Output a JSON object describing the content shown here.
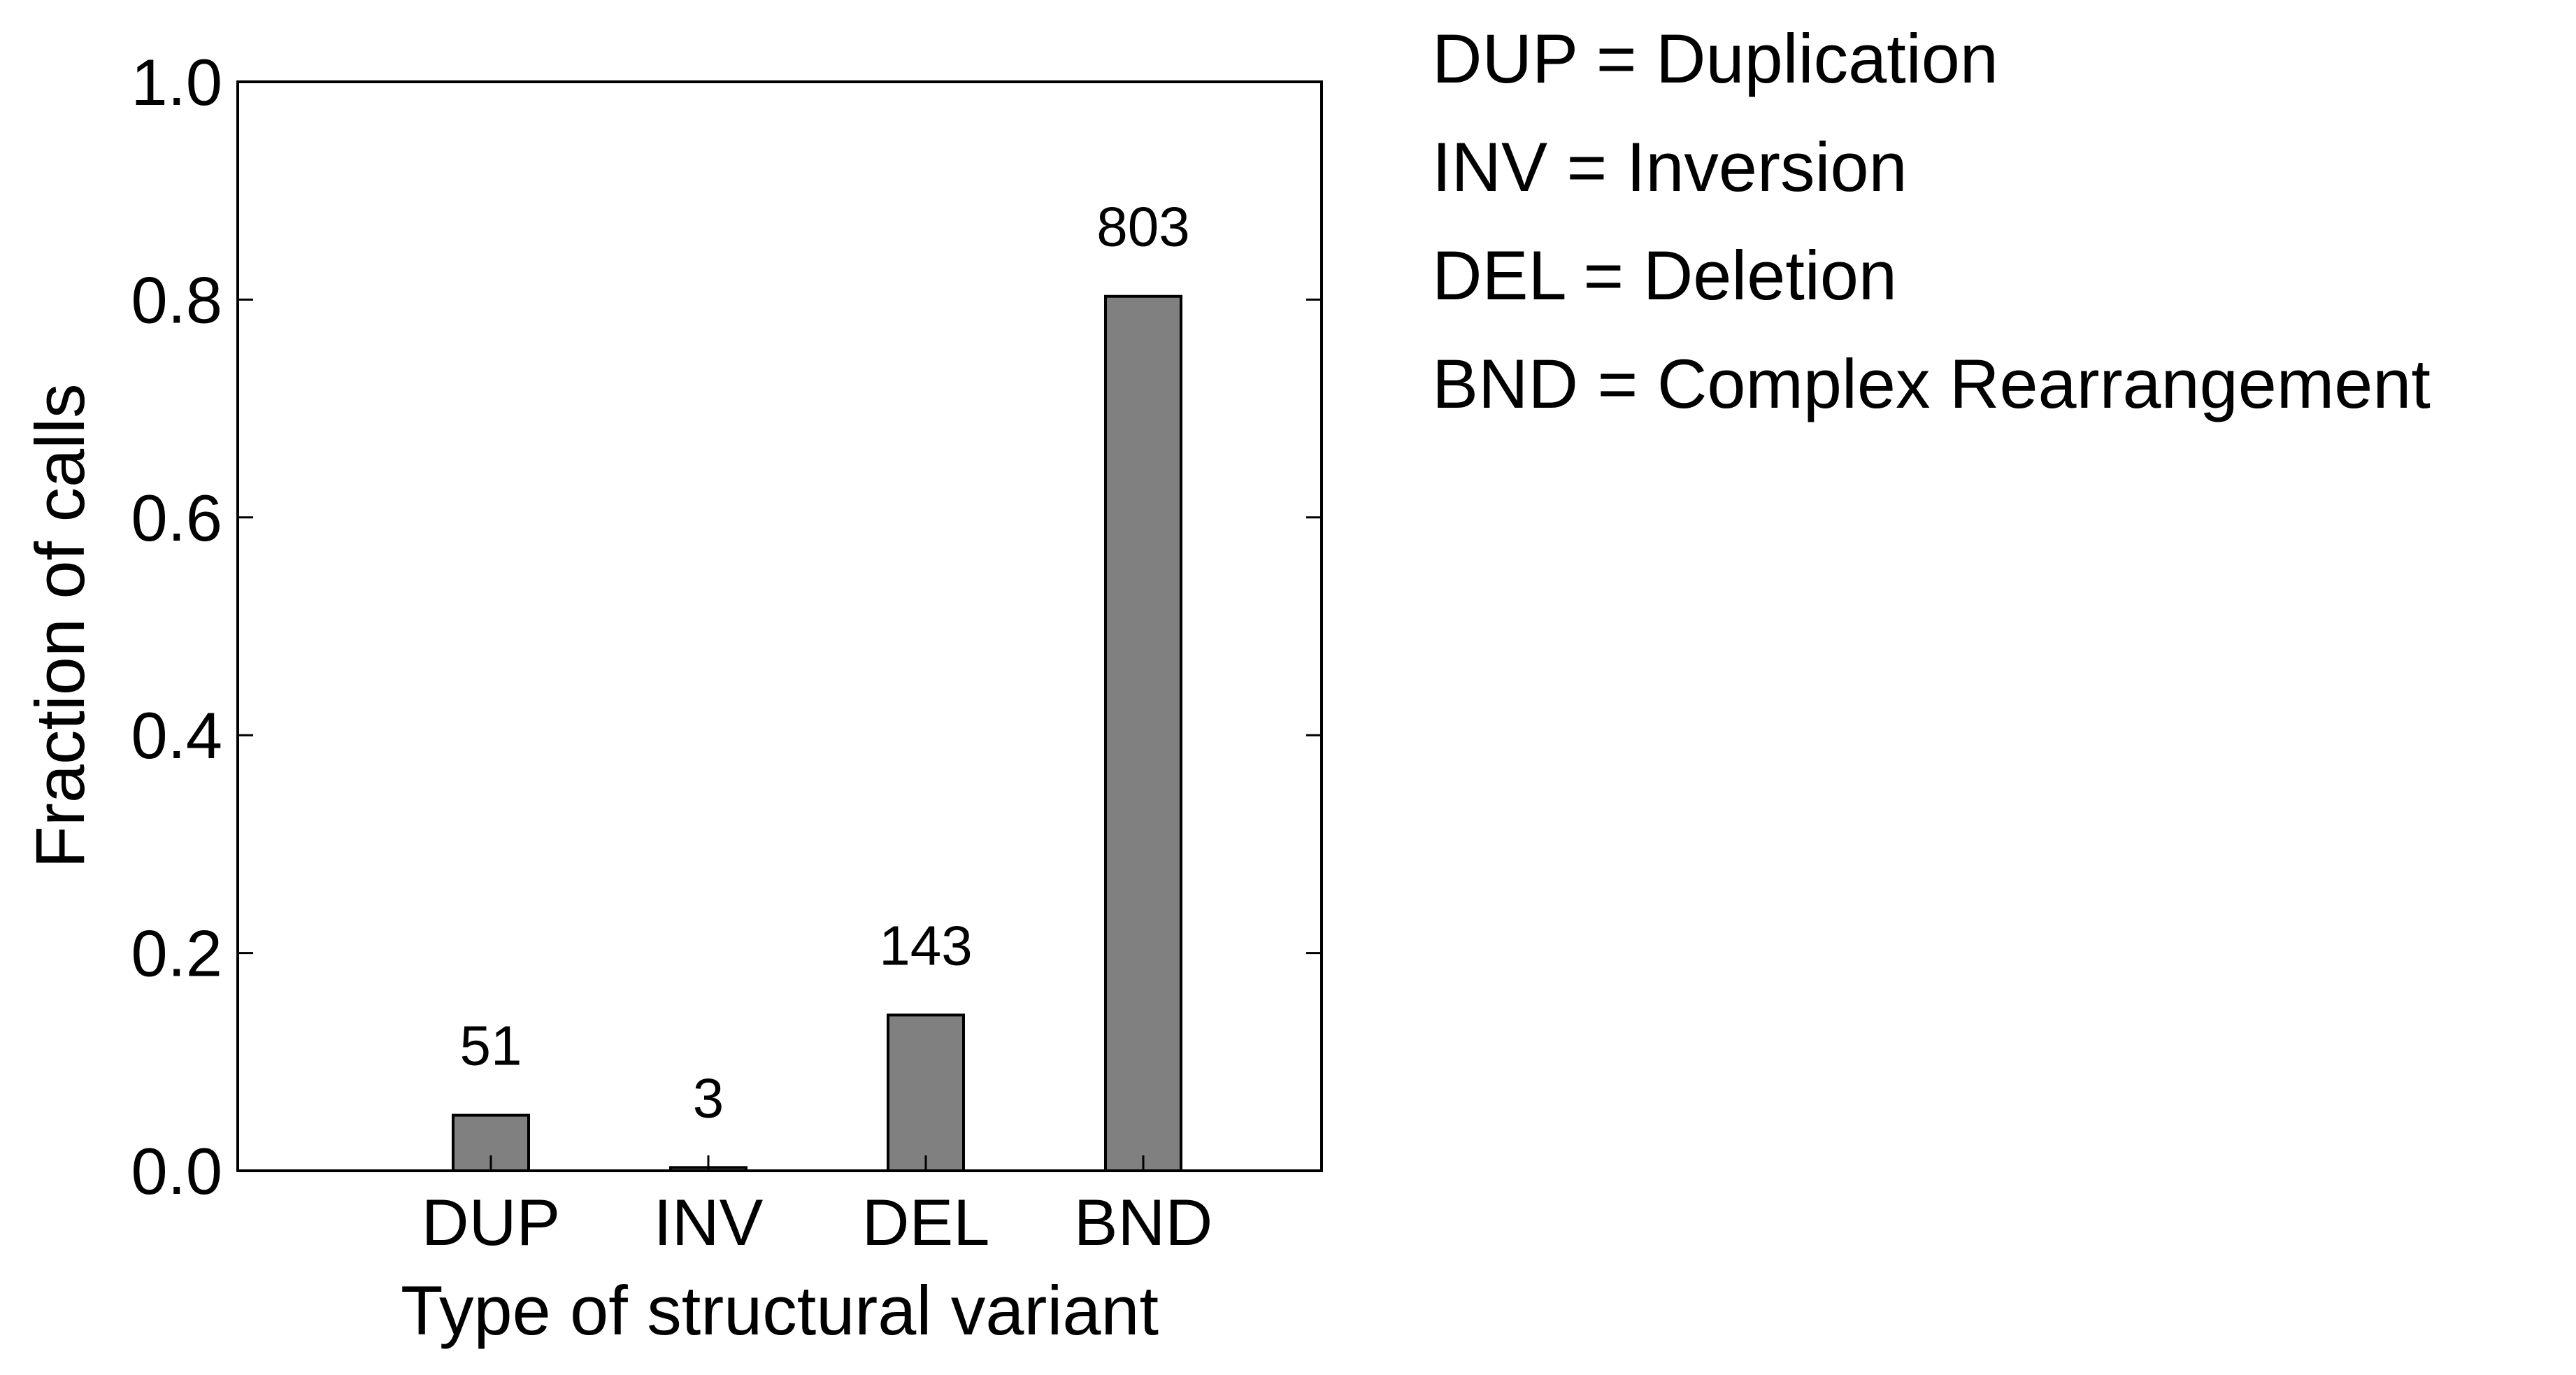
{
  "chart_data": {
    "type": "bar",
    "title": "",
    "xlabel": "Type of structural variant",
    "ylabel": "Fraction of calls",
    "categories": [
      "DUP",
      "INV",
      "DEL",
      "BND"
    ],
    "values": [
      0.051,
      0.003,
      0.143,
      0.803
    ],
    "data_labels": [
      "51",
      "3",
      "143",
      "803"
    ],
    "ylim": [
      0.0,
      1.0
    ],
    "yticks": [
      0.0,
      0.2,
      0.4,
      0.6,
      0.8,
      1.0
    ],
    "ytick_labels": [
      "0.0",
      "0.2",
      "0.4",
      "0.6",
      "0.8",
      "1.0"
    ],
    "grid": false,
    "bar_color": "#808080",
    "edge_color": "#000000"
  },
  "legend_notes": [
    "DUP = Duplication",
    "INV = Inversion",
    "DEL = Deletion",
    "BND = Complex Rearrangement"
  ]
}
